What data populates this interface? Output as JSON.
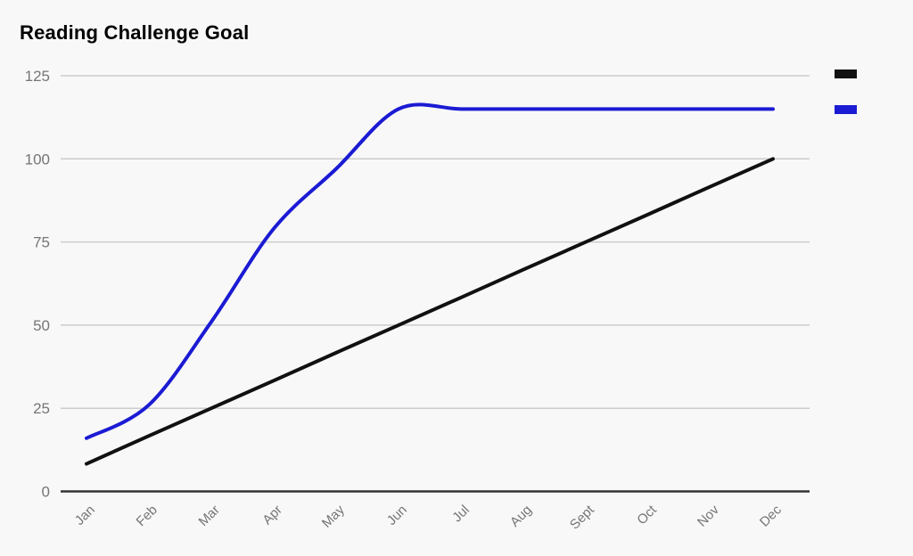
{
  "page": {
    "background": "#f8f8f8"
  },
  "chart_data": {
    "type": "line",
    "title": "Reading Challenge Goal",
    "categories": [
      "Jan",
      "Feb",
      "Mar",
      "Apr",
      "May",
      "Jun",
      "Jul",
      "Aug",
      "Sept",
      "Oct",
      "Nov",
      "Dec"
    ],
    "series": [
      {
        "id": "black-goal-pace-line",
        "color": "#111111",
        "smooth": false,
        "values": [
          8.3,
          16.7,
          25,
          33.3,
          41.7,
          50,
          58.3,
          66.7,
          75,
          83.3,
          91.7,
          100
        ]
      },
      {
        "id": "blue-progress-line",
        "color": "#1b1bd4",
        "smooth": true,
        "values": [
          16,
          26,
          51,
          79,
          97,
          115,
          115,
          115,
          115,
          115,
          115,
          115
        ]
      }
    ],
    "xlabel": "",
    "ylabel": "",
    "ylim": [
      0,
      125
    ],
    "yticks": [
      0,
      25,
      50,
      75,
      100,
      125
    ],
    "grid": "horizontal",
    "legend_position": "right (labels cropped off screen edge)"
  },
  "legend": {
    "swatches": [
      {
        "id": "black-series-swatch",
        "color": "#111111"
      },
      {
        "id": "blue-series-swatch",
        "color": "#1b1bd4"
      }
    ]
  },
  "colors": {
    "title": "#000000",
    "axis_label": "#757575",
    "gridline": "#cccccc",
    "baseline": "#333333"
  }
}
